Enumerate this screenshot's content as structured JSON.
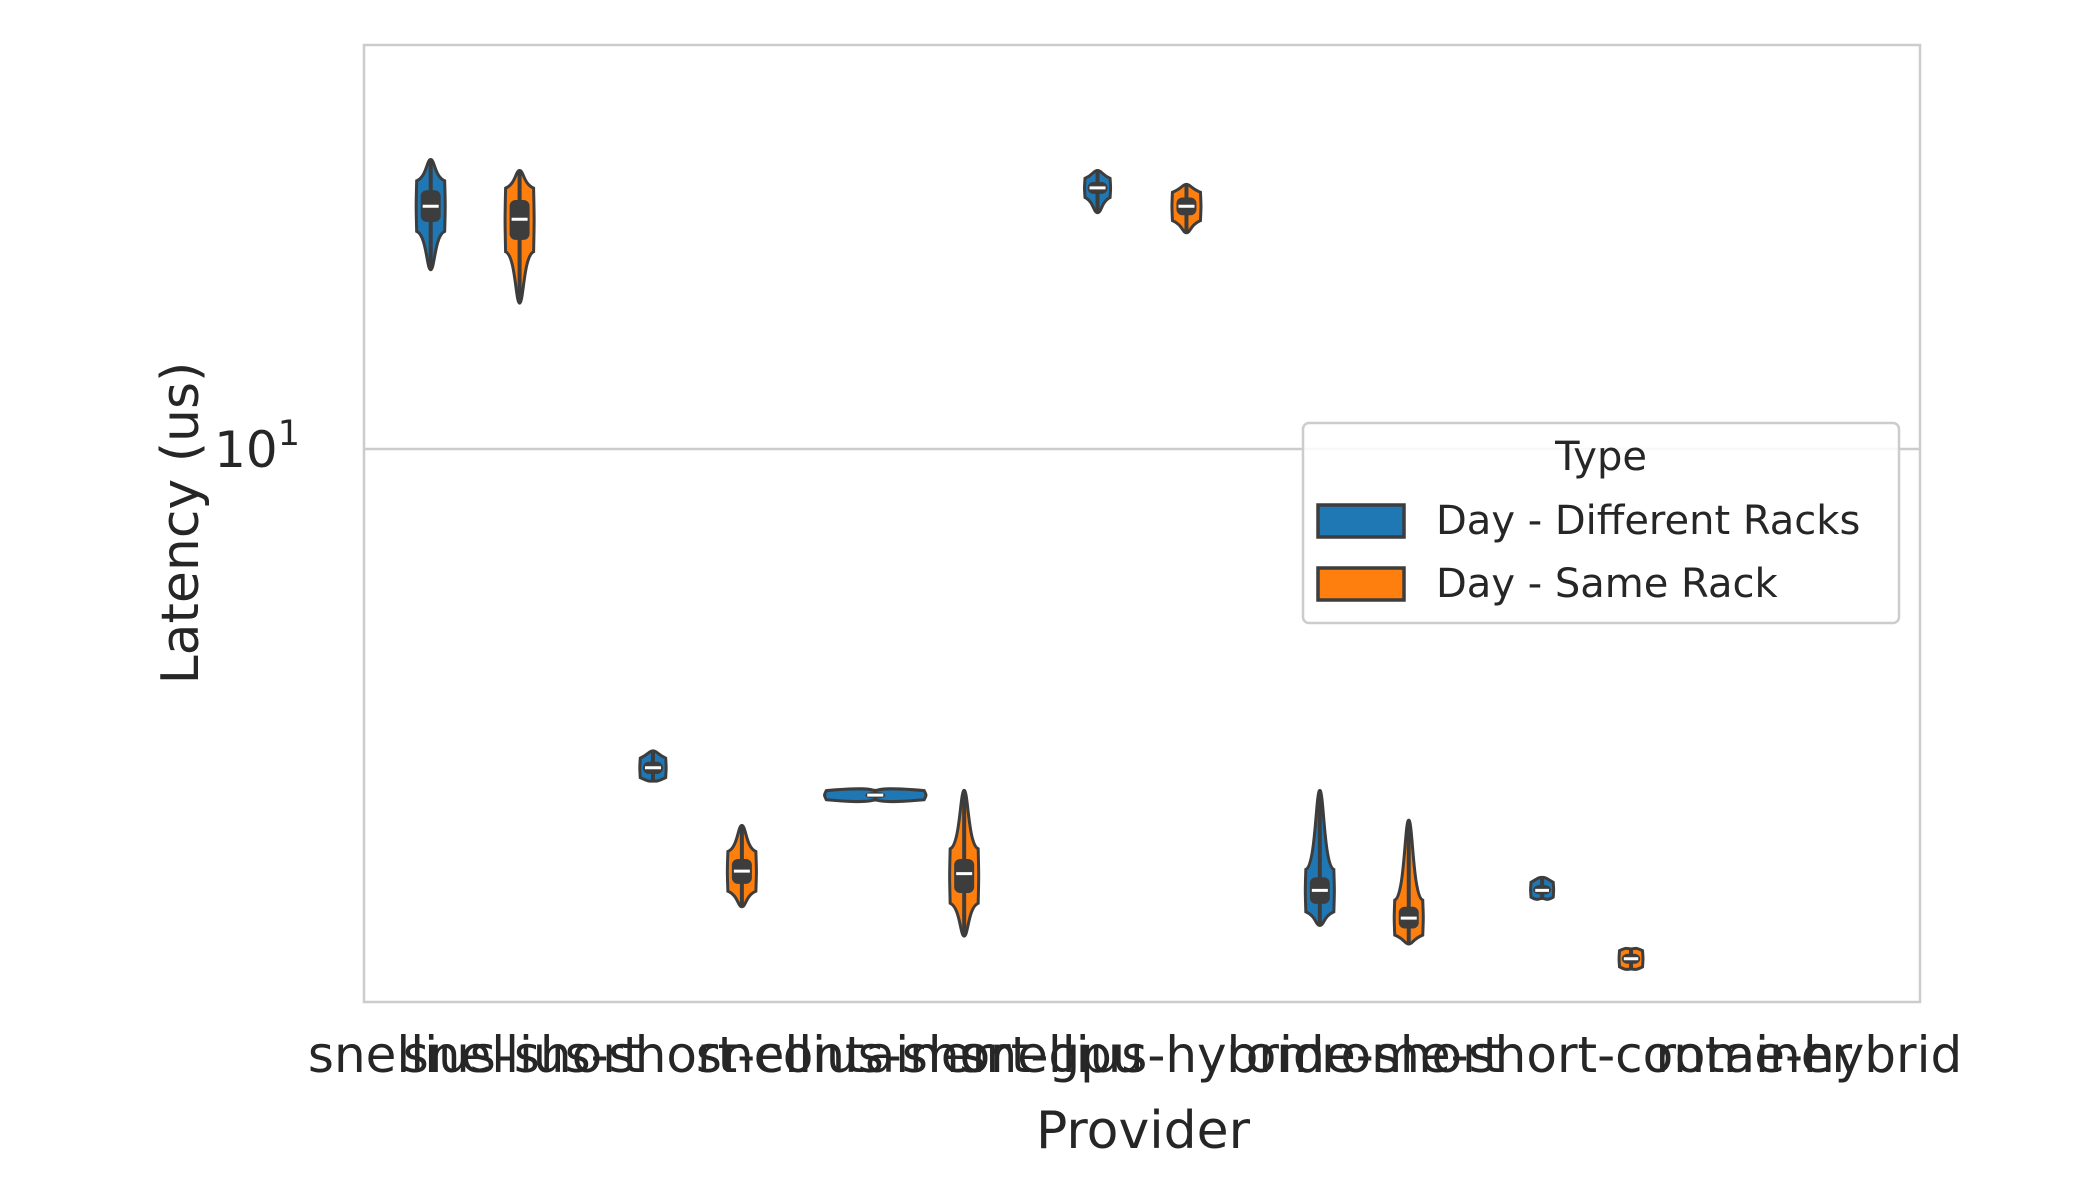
{
  "chart_data": {
    "type": "violin",
    "xlabel": "Provider",
    "ylabel": "Latency (us)",
    "yscale": "log",
    "ylim": [
      1.5,
      40
    ],
    "ytick_major": {
      "base": "10",
      "exponent": "1",
      "value": 10
    },
    "grid": true,
    "categories": [
      "snellius-short",
      "snellius-short-container",
      "snellius-short-gpu",
      "snellius-hybrid",
      "rome-short",
      "rome-short-container",
      "rome-hybrid"
    ],
    "tick_labels": [
      "snellius-short",
      "snellius-short-container",
      "snellius-short-gpu",
      "snellius-hybrid",
      "rome-short",
      "rome-short-container",
      "rome-hybrid"
    ],
    "legend": {
      "title": "Type",
      "placement": "center-right",
      "entries": [
        {
          "name": "Day - Different Racks",
          "color": "#1f77b4"
        },
        {
          "name": "Day - Same Rack",
          "color": "#ff7f0e"
        }
      ]
    },
    "series": [
      {
        "name": "Day - Different Racks",
        "color": "#1f77b4",
        "violins": [
          {
            "category": "snellius-short",
            "median": 23.0,
            "q1": 21.8,
            "q3": 24.3,
            "min": 18.5,
            "max": 27.0
          },
          {
            "category": "snellius-short-container",
            "median": 3.35,
            "q1": 3.28,
            "q3": 3.42,
            "min": 3.2,
            "max": 3.55
          },
          {
            "category": "snellius-short-gpu",
            "median": 3.05,
            "q1": 3.02,
            "q3": 3.08,
            "min": 3.0,
            "max": 3.1
          },
          {
            "category": "snellius-hybrid",
            "median": 24.5,
            "q1": 24.0,
            "q3": 25.0,
            "min": 22.5,
            "max": 26.0
          },
          {
            "category": "rome-short",
            "median": 2.2,
            "q1": 2.1,
            "q3": 2.3,
            "min": 1.95,
            "max": 3.1
          },
          {
            "category": "rome-short-container",
            "median": 2.2,
            "q1": 2.17,
            "q3": 2.24,
            "min": 2.14,
            "max": 2.3
          }
        ]
      },
      {
        "name": "Day - Same Rack",
        "color": "#ff7f0e",
        "violins": [
          {
            "category": "snellius-short",
            "median": 22.0,
            "q1": 20.5,
            "q3": 23.5,
            "min": 16.5,
            "max": 26.0
          },
          {
            "category": "snellius-short-container",
            "median": 2.35,
            "q1": 2.25,
            "q3": 2.45,
            "min": 2.08,
            "max": 2.75
          },
          {
            "category": "snellius-short-gpu",
            "median": 2.33,
            "q1": 2.18,
            "q3": 2.45,
            "min": 1.88,
            "max": 3.1
          },
          {
            "category": "snellius-hybrid",
            "median": 23.0,
            "q1": 22.3,
            "q3": 23.7,
            "min": 21.0,
            "max": 24.8
          },
          {
            "category": "rome-short",
            "median": 2.0,
            "q1": 1.93,
            "q3": 2.08,
            "min": 1.83,
            "max": 2.8
          },
          {
            "category": "rome-short-container",
            "median": 1.74,
            "q1": 1.71,
            "q3": 1.77,
            "min": 1.68,
            "max": 1.8
          }
        ]
      }
    ]
  }
}
